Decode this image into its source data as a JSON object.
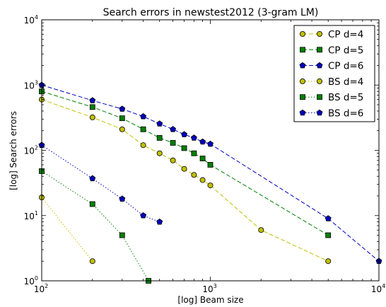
{
  "chart_data": {
    "type": "line",
    "title": "Search errors in newstest2012 (3-gram LM)",
    "xlabel": "[log] Beam size",
    "ylabel": "[log] Search errors",
    "xscale": "log",
    "yscale": "log",
    "xlim": [
      100,
      10000
    ],
    "ylim": [
      1,
      10000
    ],
    "x_ticks": [
      {
        "base": "10",
        "exp": "2",
        "value": 100
      },
      {
        "base": "10",
        "exp": "3",
        "value": 1000
      },
      {
        "base": "10",
        "exp": "4",
        "value": 10000
      }
    ],
    "y_ticks": [
      {
        "base": "10",
        "exp": "0",
        "value": 1
      },
      {
        "base": "10",
        "exp": "1",
        "value": 10
      },
      {
        "base": "10",
        "exp": "2",
        "value": 100
      },
      {
        "base": "10",
        "exp": "3",
        "value": 1000
      },
      {
        "base": "10",
        "exp": "4",
        "value": 10000
      }
    ],
    "grid": false,
    "legend_position": "top-right",
    "series": [
      {
        "name": "CP d=4",
        "color": "#bfbf00",
        "marker": "circle",
        "line": "dashed",
        "points": [
          [
            100,
            600
          ],
          [
            200,
            320
          ],
          [
            300,
            210
          ],
          [
            400,
            120
          ],
          [
            500,
            90
          ],
          [
            600,
            70
          ],
          [
            700,
            52
          ],
          [
            800,
            42
          ],
          [
            900,
            35
          ],
          [
            1000,
            29
          ],
          [
            2000,
            6
          ],
          [
            5000,
            2
          ]
        ]
      },
      {
        "name": "CP d=5",
        "color": "#008000",
        "marker": "square",
        "line": "dashed",
        "points": [
          [
            100,
            800
          ],
          [
            200,
            460
          ],
          [
            300,
            310
          ],
          [
            400,
            210
          ],
          [
            500,
            155
          ],
          [
            600,
            130
          ],
          [
            700,
            108
          ],
          [
            800,
            90
          ],
          [
            900,
            75
          ],
          [
            1000,
            60
          ],
          [
            5000,
            5
          ]
        ]
      },
      {
        "name": "CP d=6",
        "color": "#0000bf",
        "marker": "pentagon",
        "line": "dashed",
        "points": [
          [
            100,
            1000
          ],
          [
            200,
            580
          ],
          [
            300,
            430
          ],
          [
            400,
            330
          ],
          [
            500,
            255
          ],
          [
            600,
            210
          ],
          [
            700,
            175
          ],
          [
            800,
            155
          ],
          [
            900,
            135
          ],
          [
            1000,
            125
          ],
          [
            5000,
            9
          ],
          [
            10000,
            2
          ]
        ]
      },
      {
        "name": "BS d=4",
        "color": "#bfbf00",
        "marker": "circle",
        "line": "dotted",
        "points": [
          [
            100,
            19
          ],
          [
            200,
            2
          ]
        ]
      },
      {
        "name": "BS d=5",
        "color": "#008000",
        "marker": "square",
        "line": "dotted",
        "points": [
          [
            100,
            48
          ],
          [
            200,
            15
          ],
          [
            300,
            5
          ],
          [
            430,
            1
          ]
        ]
      },
      {
        "name": "BS d=6",
        "color": "#0000bf",
        "marker": "pentagon",
        "line": "dotted",
        "points": [
          [
            100,
            120
          ],
          [
            200,
            37
          ],
          [
            300,
            18
          ],
          [
            400,
            10
          ],
          [
            500,
            8
          ]
        ]
      }
    ]
  }
}
